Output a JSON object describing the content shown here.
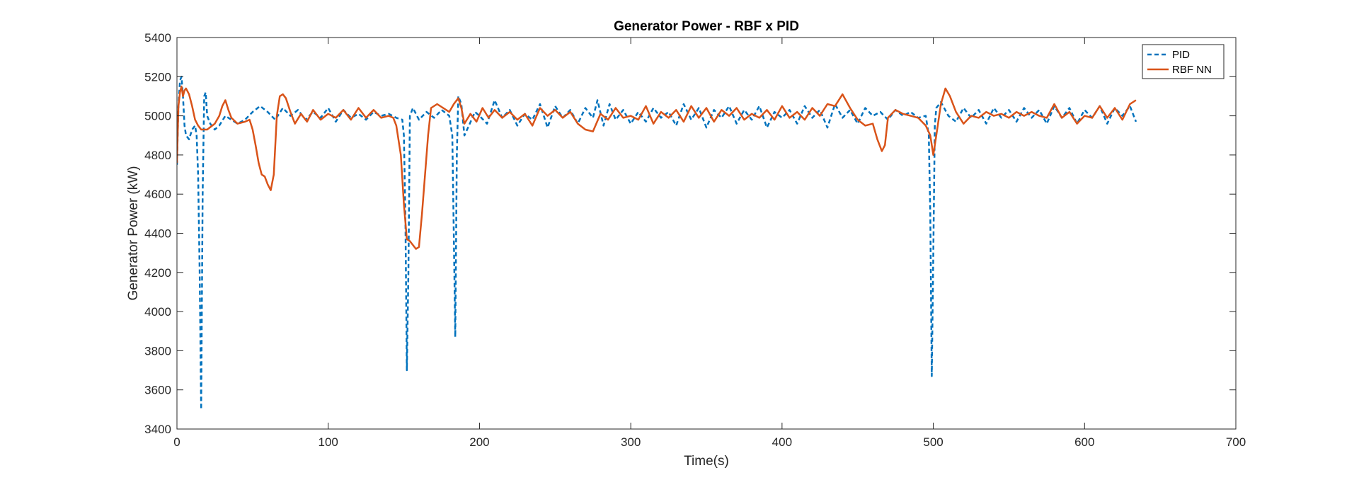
{
  "chart_data": {
    "type": "line",
    "title": "Generator Power - RBF x PID",
    "xlabel": "Time(s)",
    "ylabel": "Generator Power (kW)",
    "xlim": [
      0,
      700
    ],
    "ylim": [
      3400,
      5400
    ],
    "xticks": [
      0,
      100,
      200,
      300,
      400,
      500,
      600,
      700
    ],
    "yticks": [
      3400,
      3600,
      3800,
      4000,
      4200,
      4400,
      4600,
      4800,
      5000,
      5200,
      5400
    ],
    "grid": false,
    "legend_position": "top-right",
    "series": [
      {
        "name": "PID",
        "color": "#0072BD",
        "line_style": "dashed",
        "points": [
          [
            0,
            4750
          ],
          [
            1,
            5050
          ],
          [
            2,
            5180
          ],
          [
            3,
            5200
          ],
          [
            4,
            5100
          ],
          [
            5,
            4950
          ],
          [
            6,
            4900
          ],
          [
            8,
            4880
          ],
          [
            10,
            4930
          ],
          [
            12,
            4950
          ],
          [
            13,
            4900
          ],
          [
            14,
            4700
          ],
          [
            15,
            4200
          ],
          [
            16,
            3500
          ],
          [
            17,
            4600
          ],
          [
            18,
            5100
          ],
          [
            19,
            5120
          ],
          [
            20,
            5000
          ],
          [
            22,
            4960
          ],
          [
            25,
            4930
          ],
          [
            28,
            4950
          ],
          [
            32,
            5000
          ],
          [
            36,
            4980
          ],
          [
            40,
            4960
          ],
          [
            45,
            4980
          ],
          [
            50,
            5020
          ],
          [
            55,
            5050
          ],
          [
            60,
            5020
          ],
          [
            65,
            4980
          ],
          [
            70,
            5040
          ],
          [
            75,
            5000
          ],
          [
            80,
            5030
          ],
          [
            85,
            4980
          ],
          [
            90,
            5020
          ],
          [
            95,
            4990
          ],
          [
            100,
            5040
          ],
          [
            105,
            4970
          ],
          [
            110,
            5030
          ],
          [
            115,
            4990
          ],
          [
            120,
            5010
          ],
          [
            125,
            4980
          ],
          [
            130,
            5020
          ],
          [
            135,
            5000
          ],
          [
            140,
            5010
          ],
          [
            145,
            4990
          ],
          [
            149,
            4980
          ],
          [
            150,
            4900
          ],
          [
            151,
            4500
          ],
          [
            152,
            3700
          ],
          [
            153,
            4200
          ],
          [
            154,
            5000
          ],
          [
            156,
            5040
          ],
          [
            160,
            4980
          ],
          [
            165,
            5020
          ],
          [
            170,
            4990
          ],
          [
            175,
            5030
          ],
          [
            180,
            5000
          ],
          [
            182,
            4900
          ],
          [
            183,
            4400
          ],
          [
            184,
            3870
          ],
          [
            185,
            4800
          ],
          [
            186,
            5100
          ],
          [
            188,
            5060
          ],
          [
            190,
            4900
          ],
          [
            193,
            4950
          ],
          [
            197,
            5020
          ],
          [
            200,
            5000
          ],
          [
            205,
            4960
          ],
          [
            210,
            5080
          ],
          [
            215,
            4990
          ],
          [
            220,
            5030
          ],
          [
            225,
            4950
          ],
          [
            230,
            5010
          ],
          [
            235,
            4980
          ],
          [
            240,
            5060
          ],
          [
            245,
            4940
          ],
          [
            250,
            5050
          ],
          [
            255,
            4990
          ],
          [
            260,
            5030
          ],
          [
            265,
            4960
          ],
          [
            270,
            5040
          ],
          [
            275,
            4990
          ],
          [
            278,
            5080
          ],
          [
            282,
            4950
          ],
          [
            286,
            5060
          ],
          [
            290,
            4980
          ],
          [
            295,
            5030
          ],
          [
            300,
            4960
          ],
          [
            305,
            5020
          ],
          [
            310,
            4970
          ],
          [
            315,
            5040
          ],
          [
            320,
            4990
          ],
          [
            325,
            5020
          ],
          [
            330,
            4950
          ],
          [
            335,
            5060
          ],
          [
            340,
            4980
          ],
          [
            345,
            5040
          ],
          [
            350,
            4940
          ],
          [
            355,
            5030
          ],
          [
            360,
            4990
          ],
          [
            365,
            5050
          ],
          [
            370,
            4960
          ],
          [
            375,
            5030
          ],
          [
            380,
            4980
          ],
          [
            385,
            5050
          ],
          [
            390,
            4940
          ],
          [
            395,
            5020
          ],
          [
            400,
            4990
          ],
          [
            405,
            5030
          ],
          [
            410,
            4960
          ],
          [
            415,
            5050
          ],
          [
            420,
            4990
          ],
          [
            425,
            5030
          ],
          [
            430,
            4940
          ],
          [
            435,
            5060
          ],
          [
            440,
            4990
          ],
          [
            445,
            5030
          ],
          [
            450,
            4960
          ],
          [
            455,
            5040
          ],
          [
            460,
            5000
          ],
          [
            465,
            5020
          ],
          [
            470,
            4980
          ],
          [
            475,
            5030
          ],
          [
            480,
            5000
          ],
          [
            485,
            5020
          ],
          [
            490,
            4990
          ],
          [
            495,
            5000
          ],
          [
            497,
            4900
          ],
          [
            498,
            4500
          ],
          [
            499,
            3670
          ],
          [
            500,
            4300
          ],
          [
            501,
            4950
          ],
          [
            502,
            5040
          ],
          [
            505,
            5070
          ],
          [
            510,
            5000
          ],
          [
            515,
            4970
          ],
          [
            520,
            5040
          ],
          [
            525,
            4990
          ],
          [
            530,
            5030
          ],
          [
            535,
            4960
          ],
          [
            540,
            5040
          ],
          [
            545,
            4990
          ],
          [
            550,
            5030
          ],
          [
            555,
            4970
          ],
          [
            560,
            5040
          ],
          [
            565,
            4990
          ],
          [
            570,
            5030
          ],
          [
            575,
            4960
          ],
          [
            580,
            5050
          ],
          [
            585,
            4990
          ],
          [
            590,
            5040
          ],
          [
            595,
            4960
          ],
          [
            600,
            5030
          ],
          [
            605,
            4990
          ],
          [
            610,
            5050
          ],
          [
            615,
            4960
          ],
          [
            620,
            5040
          ],
          [
            625,
            5000
          ],
          [
            630,
            5050
          ],
          [
            634,
            4970
          ]
        ]
      },
      {
        "name": "RBF NN",
        "color": "#D95319",
        "line_style": "solid",
        "points": [
          [
            0,
            4760
          ],
          [
            1,
            5050
          ],
          [
            2,
            5120
          ],
          [
            3,
            5150
          ],
          [
            4,
            5100
          ],
          [
            5,
            5130
          ],
          [
            6,
            5140
          ],
          [
            8,
            5110
          ],
          [
            10,
            5050
          ],
          [
            12,
            4980
          ],
          [
            14,
            4950
          ],
          [
            16,
            4930
          ],
          [
            20,
            4930
          ],
          [
            25,
            4960
          ],
          [
            28,
            5000
          ],
          [
            30,
            5050
          ],
          [
            32,
            5080
          ],
          [
            34,
            5030
          ],
          [
            36,
            4990
          ],
          [
            40,
            4960
          ],
          [
            45,
            4970
          ],
          [
            48,
            4980
          ],
          [
            50,
            4930
          ],
          [
            52,
            4850
          ],
          [
            54,
            4760
          ],
          [
            56,
            4700
          ],
          [
            58,
            4690
          ],
          [
            60,
            4650
          ],
          [
            62,
            4620
          ],
          [
            64,
            4700
          ],
          [
            66,
            5000
          ],
          [
            68,
            5100
          ],
          [
            70,
            5110
          ],
          [
            72,
            5090
          ],
          [
            75,
            5020
          ],
          [
            78,
            4960
          ],
          [
            82,
            5010
          ],
          [
            86,
            4970
          ],
          [
            90,
            5030
          ],
          [
            95,
            4980
          ],
          [
            100,
            5010
          ],
          [
            105,
            4990
          ],
          [
            110,
            5030
          ],
          [
            115,
            4980
          ],
          [
            120,
            5040
          ],
          [
            125,
            4990
          ],
          [
            130,
            5030
          ],
          [
            135,
            4990
          ],
          [
            140,
            5000
          ],
          [
            143,
            4990
          ],
          [
            145,
            4950
          ],
          [
            148,
            4800
          ],
          [
            150,
            4550
          ],
          [
            152,
            4370
          ],
          [
            154,
            4360
          ],
          [
            156,
            4340
          ],
          [
            158,
            4320
          ],
          [
            160,
            4330
          ],
          [
            162,
            4500
          ],
          [
            164,
            4700
          ],
          [
            166,
            4900
          ],
          [
            168,
            5040
          ],
          [
            172,
            5060
          ],
          [
            176,
            5040
          ],
          [
            180,
            5020
          ],
          [
            183,
            5060
          ],
          [
            186,
            5090
          ],
          [
            188,
            5040
          ],
          [
            190,
            4960
          ],
          [
            194,
            5010
          ],
          [
            198,
            4970
          ],
          [
            202,
            5040
          ],
          [
            206,
            4990
          ],
          [
            210,
            5030
          ],
          [
            215,
            4990
          ],
          [
            220,
            5020
          ],
          [
            225,
            4980
          ],
          [
            230,
            5010
          ],
          [
            235,
            4950
          ],
          [
            240,
            5040
          ],
          [
            245,
            5000
          ],
          [
            250,
            5030
          ],
          [
            255,
            4990
          ],
          [
            260,
            5020
          ],
          [
            265,
            4960
          ],
          [
            270,
            4930
          ],
          [
            275,
            4920
          ],
          [
            280,
            5010
          ],
          [
            285,
            4980
          ],
          [
            290,
            5040
          ],
          [
            295,
            4990
          ],
          [
            300,
            5000
          ],
          [
            305,
            4980
          ],
          [
            310,
            5050
          ],
          [
            315,
            4960
          ],
          [
            320,
            5020
          ],
          [
            325,
            4990
          ],
          [
            330,
            5030
          ],
          [
            335,
            4970
          ],
          [
            340,
            5050
          ],
          [
            345,
            4990
          ],
          [
            350,
            5040
          ],
          [
            355,
            4970
          ],
          [
            360,
            5030
          ],
          [
            365,
            5000
          ],
          [
            370,
            5040
          ],
          [
            375,
            4980
          ],
          [
            380,
            5010
          ],
          [
            385,
            4990
          ],
          [
            390,
            5030
          ],
          [
            395,
            4980
          ],
          [
            400,
            5050
          ],
          [
            405,
            4990
          ],
          [
            410,
            5020
          ],
          [
            415,
            4980
          ],
          [
            420,
            5040
          ],
          [
            425,
            5000
          ],
          [
            430,
            5060
          ],
          [
            435,
            5050
          ],
          [
            440,
            5110
          ],
          [
            445,
            5040
          ],
          [
            450,
            4980
          ],
          [
            455,
            4950
          ],
          [
            460,
            4960
          ],
          [
            463,
            4880
          ],
          [
            466,
            4820
          ],
          [
            468,
            4850
          ],
          [
            470,
            4990
          ],
          [
            475,
            5030
          ],
          [
            480,
            5010
          ],
          [
            485,
            5000
          ],
          [
            490,
            4990
          ],
          [
            495,
            4950
          ],
          [
            498,
            4900
          ],
          [
            500,
            4800
          ],
          [
            502,
            4900
          ],
          [
            505,
            5060
          ],
          [
            508,
            5140
          ],
          [
            511,
            5100
          ],
          [
            515,
            5020
          ],
          [
            520,
            4960
          ],
          [
            525,
            5000
          ],
          [
            530,
            4990
          ],
          [
            535,
            5020
          ],
          [
            540,
            5000
          ],
          [
            545,
            5010
          ],
          [
            550,
            4990
          ],
          [
            555,
            5020
          ],
          [
            560,
            5000
          ],
          [
            565,
            5020
          ],
          [
            570,
            5000
          ],
          [
            575,
            4990
          ],
          [
            580,
            5060
          ],
          [
            585,
            4990
          ],
          [
            590,
            5020
          ],
          [
            595,
            4960
          ],
          [
            600,
            5000
          ],
          [
            605,
            4990
          ],
          [
            610,
            5050
          ],
          [
            615,
            4990
          ],
          [
            620,
            5040
          ],
          [
            625,
            4980
          ],
          [
            630,
            5060
          ],
          [
            634,
            5080
          ]
        ]
      }
    ]
  }
}
